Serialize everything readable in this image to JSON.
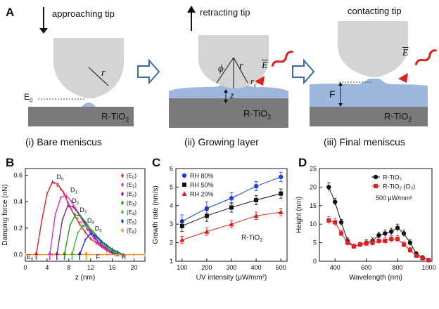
{
  "figure": {
    "panel_a": {
      "letter": "A",
      "stage1": {
        "top_label": "approaching tip",
        "substrate": "R-TiO",
        "substrate_sub": "2",
        "e_label": "E",
        "e_sub": "0",
        "r_label": "r",
        "caption_num": "(i)",
        "caption_text": "Bare meniscus"
      },
      "stage2": {
        "top_label": "retracting tip",
        "substrate": "R-TiO",
        "substrate_sub": "2",
        "phi_label": "ϕ",
        "r_label": "r",
        "rc_label": "r",
        "rc_sub": "c",
        "z_label": "z",
        "e_field": "E",
        "caption_num": "(ii)",
        "caption_text": "Growing layer"
      },
      "stage3": {
        "top_label": "contacting tip",
        "substrate": "R-TiO",
        "substrate_sub": "2",
        "f_label": "F",
        "e_field": "E",
        "caption_num": "(iii)",
        "caption_text": "Final meniscus"
      },
      "colors": {
        "tip": "#d4d4d4",
        "substrate": "#7a7a7a",
        "water": "#9db7dd",
        "arrow": "#e0201a"
      }
    },
    "panel_b": {
      "letter": "B"
    },
    "panel_c": {
      "letter": "C"
    },
    "panel_d": {
      "letter": "D"
    }
  },
  "chart_data": [
    {
      "type": "line",
      "panel": "B",
      "xlabel": "z (nm)",
      "ylabel": "Damping force (nN)",
      "xlim": [
        0,
        22
      ],
      "ylim": [
        -0.05,
        0.65
      ],
      "xticks": [
        "0",
        "4",
        "8",
        "12",
        "16",
        "20"
      ],
      "yticks": [
        "0.0",
        "0.2",
        "0.4",
        "0.6"
      ],
      "legend_position": "top-right",
      "series": [
        {
          "name": "(E0)",
          "color": "#e8201c",
          "peak_label": "D0",
          "x": [
            2,
            3,
            4,
            5,
            6,
            7,
            8,
            9,
            10,
            11,
            12,
            13,
            14,
            15,
            16,
            17
          ],
          "y": [
            0.0,
            0.25,
            0.46,
            0.55,
            0.53,
            0.47,
            0.38,
            0.3,
            0.23,
            0.17,
            0.12,
            0.09,
            0.06,
            0.03,
            0.01,
            0.0
          ]
        },
        {
          "name": "(E1)",
          "color": "#e02ad8",
          "peak_label": "D1",
          "x": [
            4.5,
            5.5,
            6.5,
            7.5,
            8.5,
            9.5,
            10.5,
            11.5,
            12.5,
            13.5,
            14.5,
            15.5,
            16.5
          ],
          "y": [
            0.0,
            0.3,
            0.43,
            0.45,
            0.4,
            0.33,
            0.26,
            0.19,
            0.13,
            0.08,
            0.05,
            0.02,
            0.0
          ]
        },
        {
          "name": "(E2)",
          "color": "#7a1fa0",
          "peak_label": "D2",
          "x": [
            5.8,
            6.8,
            7.8,
            8.8,
            9.8,
            10.8,
            11.8,
            12.8,
            13.8,
            14.8,
            15.8,
            16.8
          ],
          "y": [
            0.0,
            0.26,
            0.37,
            0.36,
            0.31,
            0.25,
            0.19,
            0.13,
            0.08,
            0.05,
            0.02,
            0.0
          ]
        },
        {
          "name": "(E3)",
          "color": "#1aa01a",
          "peak_label": "D3",
          "x": [
            7.2,
            8.2,
            9.2,
            10.2,
            11.2,
            12.2,
            13.2,
            14.2,
            15.2,
            16.2,
            17.2
          ],
          "y": [
            0.0,
            0.22,
            0.3,
            0.29,
            0.24,
            0.18,
            0.13,
            0.08,
            0.05,
            0.02,
            0.0
          ]
        },
        {
          "name": "(E4)",
          "color": "#39c039",
          "peak_label": "D4",
          "x": [
            8.6,
            9.6,
            10.6,
            11.6,
            12.6,
            13.6,
            14.6,
            15.6,
            16.6,
            17.6
          ],
          "y": [
            0.0,
            0.16,
            0.22,
            0.21,
            0.17,
            0.12,
            0.08,
            0.04,
            0.02,
            0.0
          ]
        },
        {
          "name": "(E5)",
          "color": "#2233cc",
          "peak_label": "D5",
          "x": [
            10,
            11,
            12,
            13,
            14,
            15,
            16,
            17,
            18
          ],
          "y": [
            0.0,
            0.11,
            0.16,
            0.14,
            0.1,
            0.07,
            0.04,
            0.02,
            0.0
          ]
        },
        {
          "name": "(E6)",
          "color": "#ff8c1a",
          "peak_label": "",
          "x": [
            0,
            5,
            10,
            15,
            20,
            22
          ],
          "y": [
            0.0,
            0.0,
            0.0,
            0.0,
            0.0,
            0.0
          ]
        }
      ],
      "annotations": {
        "e0": "E",
        "e0_sub": "0",
        "f": "F",
        "r": "R"
      },
      "start_arrows_x": [
        2,
        4.5,
        5.8,
        7.2,
        8.6,
        10,
        11.2
      ]
    },
    {
      "type": "line",
      "panel": "C",
      "xlabel": "UV intensity (μW/mm²)",
      "ylabel": "Growth rate (nm/s)",
      "xlim": [
        75,
        525
      ],
      "ylim": [
        1,
        6
      ],
      "xticks": [
        "100",
        "200",
        "300",
        "400",
        "500"
      ],
      "yticks": [
        "1",
        "2",
        "3",
        "4",
        "5",
        "6"
      ],
      "annotation": "R-TiO",
      "annotation_sub": "2",
      "legend_position": "top-left",
      "x": [
        100,
        200,
        300,
        400,
        500
      ],
      "series": [
        {
          "name": "RH 80%",
          "color": "#1f3fd6",
          "marker": "circle",
          "values": [
            3.15,
            3.85,
            4.4,
            5.05,
            5.55
          ],
          "err": [
            0.35,
            0.35,
            0.3,
            0.25,
            0.25
          ]
        },
        {
          "name": "RH 50%",
          "color": "#111111",
          "marker": "square",
          "values": [
            2.9,
            3.45,
            3.9,
            4.3,
            4.65
          ],
          "err": [
            0.3,
            0.3,
            0.25,
            0.25,
            0.25
          ]
        },
        {
          "name": "RH 20%",
          "color": "#e02020",
          "marker": "triangle",
          "values": [
            2.15,
            2.6,
            3.0,
            3.45,
            3.65
          ],
          "err": [
            0.2,
            0.2,
            0.2,
            0.2,
            0.2
          ]
        }
      ]
    },
    {
      "type": "line",
      "panel": "D",
      "xlabel": "Wavelength (nm)",
      "ylabel": "Height (nm)",
      "xlim": [
        300,
        1020
      ],
      "ylim": [
        0,
        25
      ],
      "xticks": [
        "400",
        "600",
        "800",
        "1000"
      ],
      "yticks": [
        "0",
        "5",
        "10",
        "15",
        "20",
        "25"
      ],
      "annotation": "500 μW/mm²",
      "legend_position": "top-right",
      "x": [
        360,
        400,
        440,
        480,
        520,
        560,
        600,
        640,
        680,
        720,
        760,
        800,
        840,
        880,
        920,
        960,
        1000
      ],
      "series": [
        {
          "name": "R-TiO₂",
          "color": "#111111",
          "marker": "circle",
          "values": [
            20,
            16,
            10.5,
            5.5,
            4,
            4.5,
            5,
            5.5,
            7,
            7.5,
            8,
            9,
            7.5,
            5,
            2,
            1,
            0.3
          ],
          "err": [
            1.2,
            1,
            0.8,
            0.8,
            0.6,
            0.6,
            0.8,
            0.8,
            0.8,
            0.9,
            0.9,
            1,
            0.9,
            0.8,
            0.6,
            0.5,
            0.3
          ]
        },
        {
          "name": "R-TiO₂ (O₂)",
          "color": "#e02020",
          "marker": "square",
          "values": [
            11,
            10.5,
            7.5,
            5,
            4,
            4.5,
            4.8,
            5,
            5.5,
            5.5,
            6,
            6,
            4.5,
            3,
            1.5,
            0.8,
            0.3
          ],
          "err": [
            1,
            1,
            0.8,
            0.8,
            0.6,
            0.6,
            0.7,
            0.8,
            0.8,
            0.8,
            0.9,
            0.9,
            0.8,
            0.7,
            0.5,
            0.4,
            0.3
          ]
        }
      ]
    }
  ]
}
